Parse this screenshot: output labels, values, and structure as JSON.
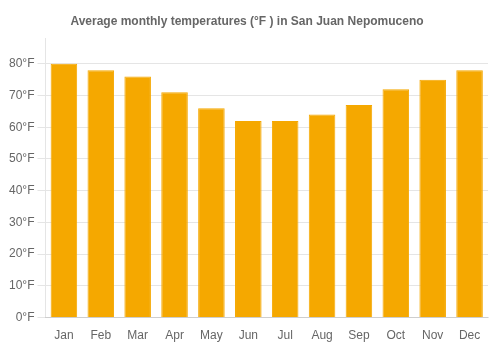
{
  "chart_data": {
    "type": "bar",
    "title": "Average monthly temperatures (°F ) in San Juan Nepomuceno",
    "categories": [
      "Jan",
      "Feb",
      "Mar",
      "Apr",
      "May",
      "Jun",
      "Jul",
      "Aug",
      "Sep",
      "Oct",
      "Nov",
      "Dec"
    ],
    "values": [
      80,
      78,
      76,
      71,
      66,
      62,
      62,
      64,
      67,
      72,
      75,
      78
    ],
    "color": "#F5A800",
    "ylim": [
      0,
      88
    ],
    "yticks": [
      {
        "value": 0,
        "label": "0°F"
      },
      {
        "value": 10,
        "label": "10°F"
      },
      {
        "value": 20,
        "label": "20°F"
      },
      {
        "value": 30,
        "label": "30°F"
      },
      {
        "value": 40,
        "label": "40°F"
      },
      {
        "value": 50,
        "label": "50°F"
      },
      {
        "value": 60,
        "label": "60°F"
      },
      {
        "value": 70,
        "label": "70°F"
      },
      {
        "value": 80,
        "label": "80°F"
      }
    ],
    "grid": true
  }
}
